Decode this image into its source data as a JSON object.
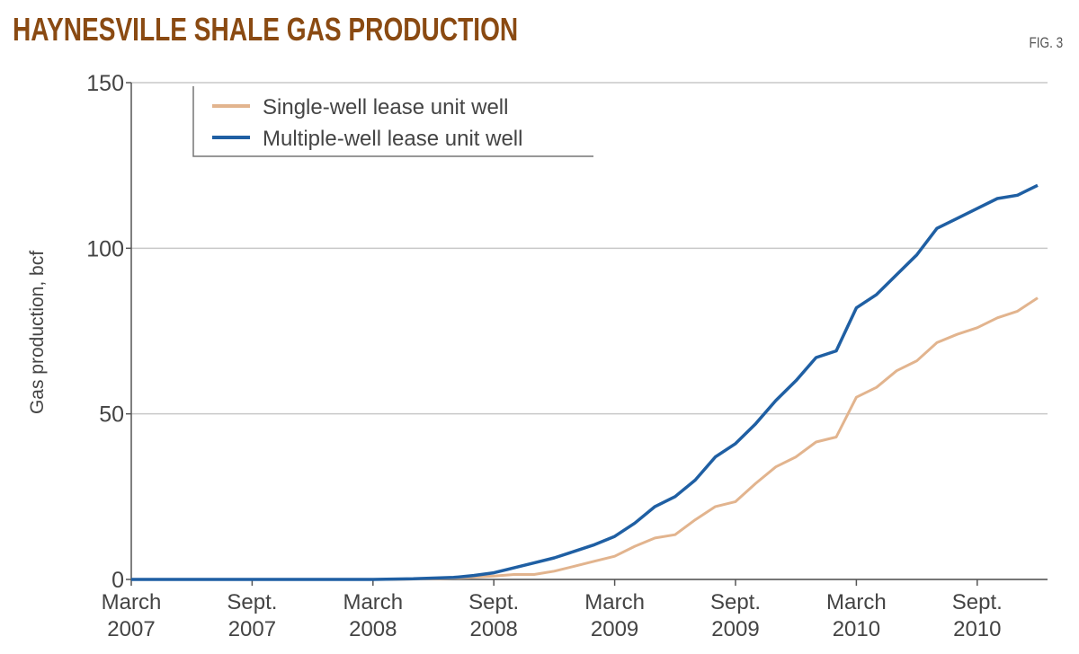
{
  "chart_data": {
    "type": "line",
    "title": "HAYNESVILLE SHALE GAS PRODUCTION",
    "figure_label": "FIG. 3",
    "ylabel": "Gas production, bcf",
    "xlabel": "",
    "ylim": [
      0,
      150
    ],
    "yticks": [
      "0",
      "50",
      "100",
      "150"
    ],
    "xlim": [
      "2007-03",
      "2011-01"
    ],
    "xticks": [
      {
        "date": "2007-03",
        "line1": "March",
        "line2": "2007"
      },
      {
        "date": "2007-09",
        "line1": "Sept.",
        "line2": "2007"
      },
      {
        "date": "2008-03",
        "line1": "March",
        "line2": "2008"
      },
      {
        "date": "2008-09",
        "line1": "Sept.",
        "line2": "2008"
      },
      {
        "date": "2009-03",
        "line1": "March",
        "line2": "2009"
      },
      {
        "date": "2009-09",
        "line1": "Sept.",
        "line2": "2009"
      },
      {
        "date": "2010-03",
        "line1": "March",
        "line2": "2010"
      },
      {
        "date": "2010-09",
        "line1": "Sept.",
        "line2": "2010"
      }
    ],
    "grid": "horizontal",
    "legend_position": "top-left",
    "x": [
      "2007-03",
      "2007-04",
      "2007-05",
      "2007-06",
      "2007-07",
      "2007-08",
      "2007-09",
      "2007-10",
      "2007-11",
      "2007-12",
      "2008-01",
      "2008-02",
      "2008-03",
      "2008-04",
      "2008-05",
      "2008-06",
      "2008-07",
      "2008-08",
      "2008-09",
      "2008-10",
      "2008-11",
      "2008-12",
      "2009-01",
      "2009-02",
      "2009-03",
      "2009-04",
      "2009-05",
      "2009-06",
      "2009-07",
      "2009-08",
      "2009-09",
      "2009-10",
      "2009-11",
      "2009-12",
      "2010-01",
      "2010-02",
      "2010-03",
      "2010-04",
      "2010-05",
      "2010-06",
      "2010-07",
      "2010-08",
      "2010-09",
      "2010-10",
      "2010-11",
      "2010-12"
    ],
    "series": [
      {
        "name": "Single-well lease unit well",
        "color": "#e2b48e",
        "values": [
          0,
          0,
          0,
          0,
          0,
          0,
          0,
          0,
          0,
          0,
          0,
          0,
          0,
          0,
          0.1,
          0.2,
          0.4,
          0.7,
          1,
          1.5,
          1.5,
          2.5,
          4,
          5.5,
          7,
          10,
          12.5,
          13.5,
          18,
          22,
          23.5,
          29,
          34,
          37,
          41.5,
          43,
          55,
          58,
          63,
          66,
          71.5,
          74,
          76,
          79,
          81,
          85
        ]
      },
      {
        "name": "Multiple-well lease unit well",
        "color": "#1f5fa3",
        "values": [
          0,
          0,
          0,
          0,
          0,
          0,
          0,
          0,
          0,
          0,
          0,
          0,
          0,
          0.1,
          0.2,
          0.4,
          0.6,
          1.2,
          2,
          3.5,
          5,
          6.5,
          8.5,
          10.5,
          13,
          17,
          22,
          25,
          30,
          37,
          41,
          47,
          54,
          60,
          67,
          69,
          82,
          86,
          92,
          98,
          106,
          109,
          112,
          115,
          116,
          119
        ]
      }
    ]
  }
}
